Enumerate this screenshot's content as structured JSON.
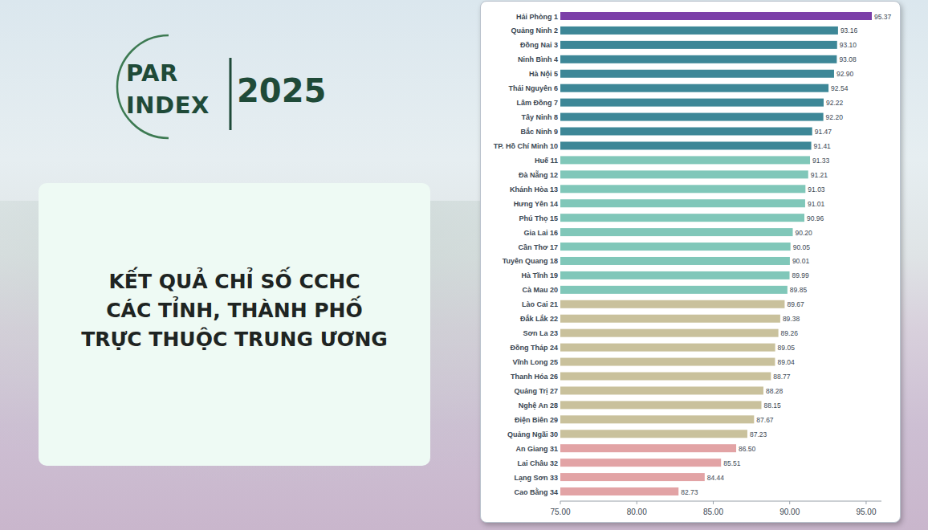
{
  "header": {
    "logo": [
      "PAR",
      "INDEX"
    ],
    "year": "2025"
  },
  "chart_data": {
    "type": "bar",
    "orientation": "horizontal",
    "title": "KẾT QUẢ CHỈ SỐ CCHC\nCÁC TỈNH, THÀNH PHỐ\nTRỰC THUỘC TRUNG ƯƠNG",
    "categories": [
      "Hải Phòng 1",
      "Quảng Ninh 2",
      "Đồng Nai 3",
      "Ninh Bình 4",
      "Hà Nội 5",
      "Thái Nguyên 6",
      "Lâm Đồng 7",
      "Tây Ninh 8",
      "Bắc Ninh 9",
      "TP. Hồ Chí Minh 10",
      "Huế 11",
      "Đà Nẵng 12",
      "Khánh Hòa 13",
      "Hưng Yên 14",
      "Phú Thọ 15",
      "Gia Lai 16",
      "Cần Thơ 17",
      "Tuyên Quang 18",
      "Hà Tĩnh 19",
      "Cà Mau 20",
      "Lào Cai 21",
      "Đắk Lắk 22",
      "Sơn La 23",
      "Đồng Tháp 24",
      "Vĩnh Long 25",
      "Thanh Hóa 26",
      "Quảng Trị 27",
      "Nghệ An 28",
      "Điện Biên 29",
      "Quảng Ngãi 30",
      "An Giang 31",
      "Lai Châu 32",
      "Lạng Sơn 33",
      "Cao Bằng 34"
    ],
    "values": [
      95.37,
      93.16,
      93.1,
      93.08,
      92.9,
      92.54,
      92.22,
      92.2,
      91.47,
      91.41,
      91.33,
      91.21,
      91.03,
      91.01,
      90.96,
      90.2,
      90.05,
      90.01,
      89.99,
      89.85,
      89.67,
      89.38,
      89.26,
      89.05,
      89.04,
      88.77,
      88.28,
      88.15,
      87.67,
      87.23,
      86.5,
      85.51,
      84.44,
      82.73
    ],
    "value_labels": [
      "95.37",
      "93.16",
      "93.10",
      "93.08",
      "92.90",
      "92.54",
      "92.22",
      "92.20",
      "91.47",
      "91.41",
      "91.33",
      "91.21",
      "91.03",
      "91.01",
      "90.96",
      "90.20",
      "90.05",
      "90.01",
      "89.99",
      "89.85",
      "89.67",
      "89.38",
      "89.26",
      "89.05",
      "89.04",
      "88.77",
      "88.28",
      "88.15",
      "87.67",
      "87.23",
      "86.50",
      "85.51",
      "84.44",
      "82.73"
    ],
    "colors": [
      "#7b3fa8",
      "#3d8797",
      "#3d8797",
      "#3d8797",
      "#3d8797",
      "#3d8797",
      "#3d8797",
      "#3d8797",
      "#3d8797",
      "#3d8797",
      "#80c7b9",
      "#80c7b9",
      "#80c7b9",
      "#80c7b9",
      "#80c7b9",
      "#80c7b9",
      "#80c7b9",
      "#80c7b9",
      "#80c7b9",
      "#80c7b9",
      "#c9c19c",
      "#c9c19c",
      "#c9c19c",
      "#c9c19c",
      "#c9c19c",
      "#c9c19c",
      "#c9c19c",
      "#c9c19c",
      "#c9c19c",
      "#c9c19c",
      "#e2a3a5",
      "#e2a3a5",
      "#e2a3a5",
      "#e2a3a5"
    ],
    "xlim": [
      75,
      96
    ],
    "xticks": [
      {
        "value": 75,
        "label": "75.00"
      },
      {
        "value": 80,
        "label": "80.00"
      },
      {
        "value": 85,
        "label": "85.00"
      },
      {
        "value": 90,
        "label": "90.00"
      },
      {
        "value": 95,
        "label": "95.00"
      }
    ],
    "grid": false,
    "data_labels": true
  }
}
